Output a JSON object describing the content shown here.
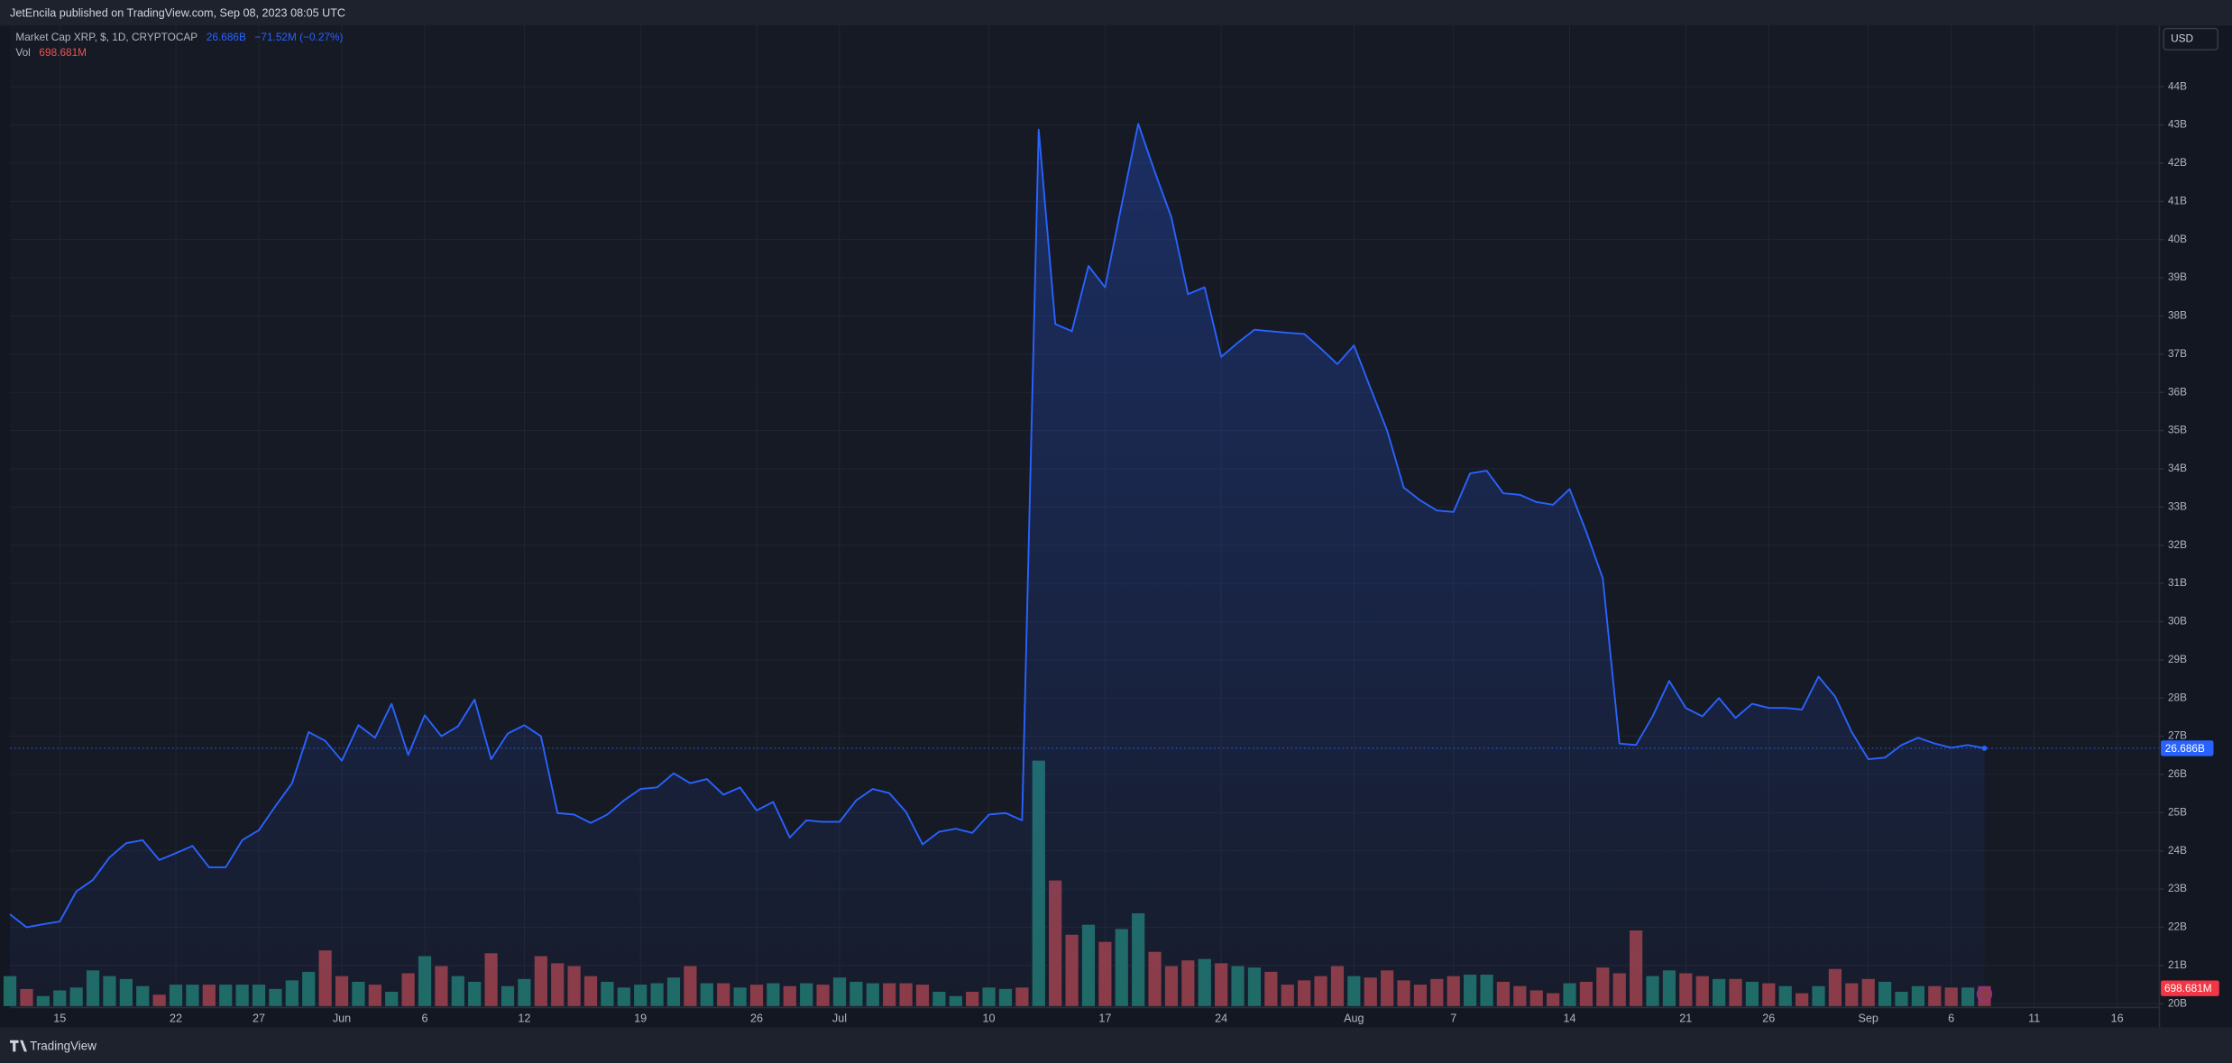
{
  "chart_data": {
    "type": "line",
    "header": "JetEncila published on TradingView.com, Sep 08, 2023 08:05 UTC",
    "legend": {
      "last": "26.686B",
      "change": "−71.52M (−0.27%)",
      "vol_last": "698.681M"
    },
    "currency": "USD",
    "footer": "TradingView",
    "x": [
      "May 12",
      "May 13",
      "May 14",
      "May 15",
      "May 16",
      "May 17",
      "May 18",
      "May 19",
      "May 20",
      "May 21",
      "May 22",
      "May 23",
      "May 24",
      "May 25",
      "May 26",
      "May 27",
      "May 28",
      "May 29",
      "May 30",
      "May 31",
      "Jun 1",
      "Jun 2",
      "Jun 3",
      "Jun 4",
      "Jun 5",
      "Jun 6",
      "Jun 7",
      "Jun 8",
      "Jun 9",
      "Jun 10",
      "Jun 11",
      "Jun 12",
      "Jun 13",
      "Jun 14",
      "Jun 15",
      "Jun 16",
      "Jun 17",
      "Jun 18",
      "Jun 19",
      "Jun 20",
      "Jun 21",
      "Jun 22",
      "Jun 23",
      "Jun 24",
      "Jun 25",
      "Jun 26",
      "Jun 27",
      "Jun 28",
      "Jun 29",
      "Jun 30",
      "Jul 1",
      "Jul 2",
      "Jul 3",
      "Jul 4",
      "Jul 5",
      "Jul 6",
      "Jul 7",
      "Jul 8",
      "Jul 9",
      "Jul 10",
      "Jul 11",
      "Jul 12",
      "Jul 13",
      "Jul 14",
      "Jul 15",
      "Jul 16",
      "Jul 17",
      "Jul 18",
      "Jul 19",
      "Jul 20",
      "Jul 21",
      "Jul 22",
      "Jul 23",
      "Jul 24",
      "Jul 25",
      "Jul 26",
      "Jul 27",
      "Jul 28",
      "Jul 29",
      "Jul 30",
      "Jul 31",
      "Aug 1",
      "Aug 2",
      "Aug 3",
      "Aug 4",
      "Aug 5",
      "Aug 6",
      "Aug 7",
      "Aug 8",
      "Aug 9",
      "Aug 10",
      "Aug 11",
      "Aug 12",
      "Aug 13",
      "Aug 14",
      "Aug 15",
      "Aug 16",
      "Aug 17",
      "Aug 18",
      "Aug 19",
      "Aug 20",
      "Aug 21",
      "Aug 22",
      "Aug 23",
      "Aug 24",
      "Aug 25",
      "Aug 26",
      "Aug 27",
      "Aug 28",
      "Aug 29",
      "Aug 30",
      "Aug 31",
      "Sep 1",
      "Sep 2",
      "Sep 3",
      "Sep 4",
      "Sep 5",
      "Sep 6",
      "Sep 7",
      "Sep 8"
    ],
    "series": [
      {
        "name": "Market Cap XRP, $, 1D, CRYPTOCAP",
        "color": "#2962ff",
        "values": [
          22.34,
          22.0,
          22.08,
          22.15,
          22.94,
          23.24,
          23.83,
          24.2,
          24.28,
          23.76,
          23.94,
          24.13,
          23.57,
          23.57,
          24.28,
          24.54,
          25.17,
          25.77,
          27.11,
          26.88,
          26.36,
          27.29,
          26.96,
          27.85,
          26.51,
          27.55,
          27.0,
          27.26,
          27.96,
          26.4,
          27.07,
          27.29,
          27.0,
          24.99,
          24.95,
          24.73,
          24.95,
          25.32,
          25.62,
          25.66,
          26.03,
          25.77,
          25.88,
          25.47,
          25.66,
          25.06,
          25.28,
          24.35,
          24.8,
          24.76,
          24.76,
          25.32,
          25.62,
          25.51,
          25.02,
          24.17,
          24.5,
          24.58,
          24.47,
          24.95,
          24.99,
          24.8,
          42.88,
          37.79,
          37.6,
          39.31,
          38.75,
          40.91,
          43.03,
          41.77,
          40.58,
          38.57,
          38.75,
          36.93,
          37.3,
          37.64,
          37.6,
          37.56,
          37.53,
          37.15,
          36.74,
          37.23,
          36.11,
          35.0,
          33.51,
          33.17,
          32.91,
          32.87,
          33.88,
          33.95,
          33.36,
          33.32,
          33.13,
          33.06,
          33.47,
          32.35,
          31.13,
          26.81,
          26.77,
          27.52,
          28.45,
          27.74,
          27.52,
          28.0,
          27.48,
          27.85,
          27.74,
          27.74,
          27.7,
          28.56,
          28.04,
          27.11,
          26.4,
          26.44,
          26.77,
          26.96,
          26.81,
          26.7,
          26.77,
          26.686
        ]
      },
      {
        "name": "Vol",
        "up_color": "#1f6b63",
        "down_color": "#8e3b42",
        "values": [
          1050,
          600,
          350,
          550,
          650,
          1250,
          1050,
          950,
          700,
          400,
          750,
          750,
          750,
          750,
          750,
          750,
          600,
          900,
          1200,
          1950,
          1050,
          850,
          750,
          500,
          1150,
          1750,
          1400,
          1050,
          850,
          1850,
          700,
          950,
          1750,
          1500,
          1400,
          1050,
          850,
          650,
          750,
          800,
          1000,
          1400,
          800,
          800,
          650,
          750,
          800,
          700,
          800,
          750,
          1000,
          850,
          800,
          800,
          800,
          750,
          500,
          350,
          500,
          650,
          600,
          650,
          8600,
          4400,
          2500,
          2850,
          2250,
          2700,
          3250,
          1900,
          1400,
          1600,
          1650,
          1500,
          1400,
          1350,
          1200,
          750,
          900,
          1050,
          1400,
          1050,
          1000,
          1250,
          900,
          750,
          950,
          1050,
          1100,
          1100,
          850,
          700,
          550,
          450,
          800,
          850,
          1350,
          1150,
          2650,
          1050,
          1250,
          1150,
          1050,
          950,
          950,
          850,
          800,
          700,
          450,
          700,
          1300,
          800,
          950,
          850,
          500,
          700,
          700,
          650,
          650,
          698.681
        ]
      }
    ],
    "xlim": [
      "May 12",
      "Sep 17"
    ],
    "xticks": [
      {
        "value": "May 15",
        "label": "15"
      },
      {
        "value": "May 22",
        "label": "22"
      },
      {
        "value": "May 27",
        "label": "27"
      },
      {
        "value": "Jun 1",
        "label": "Jun"
      },
      {
        "value": "Jun 6",
        "label": "6"
      },
      {
        "value": "Jun 12",
        "label": "12"
      },
      {
        "value": "Jun 19",
        "label": "19"
      },
      {
        "value": "Jun 26",
        "label": "26"
      },
      {
        "value": "Jul 1",
        "label": "Jul"
      },
      {
        "value": "Jul 10",
        "label": "10"
      },
      {
        "value": "Jul 17",
        "label": "17"
      },
      {
        "value": "Jul 24",
        "label": "24"
      },
      {
        "value": "Aug 1",
        "label": "Aug"
      },
      {
        "value": "Aug 7",
        "label": "7"
      },
      {
        "value": "Aug 14",
        "label": "14"
      },
      {
        "value": "Aug 21",
        "label": "21"
      },
      {
        "value": "Aug 26",
        "label": "26"
      },
      {
        "value": "Sep 1",
        "label": "Sep"
      },
      {
        "value": "Sep 6",
        "label": "6"
      },
      {
        "value": "Sep 11",
        "label": "11"
      },
      {
        "value": "Sep 16",
        "label": "16"
      }
    ],
    "ylim": [
      19.9,
      45.6
    ],
    "yticks": [
      {
        "value": 20,
        "label": "20B"
      },
      {
        "value": 21,
        "label": "21B"
      },
      {
        "value": 22,
        "label": "22B"
      },
      {
        "value": 23,
        "label": "23B"
      },
      {
        "value": 24,
        "label": "24B"
      },
      {
        "value": 25,
        "label": "25B"
      },
      {
        "value": 26,
        "label": "26B"
      },
      {
        "value": 27,
        "label": "27B"
      },
      {
        "value": 28,
        "label": "28B"
      },
      {
        "value": 29,
        "label": "29B"
      },
      {
        "value": 30,
        "label": "30B"
      },
      {
        "value": 31,
        "label": "31B"
      },
      {
        "value": 32,
        "label": "32B"
      },
      {
        "value": 33,
        "label": "33B"
      },
      {
        "value": 34,
        "label": "34B"
      },
      {
        "value": 35,
        "label": "35B"
      },
      {
        "value": 36,
        "label": "36B"
      },
      {
        "value": 37,
        "label": "37B"
      },
      {
        "value": 38,
        "label": "38B"
      },
      {
        "value": 39,
        "label": "39B"
      },
      {
        "value": 40,
        "label": "40B"
      },
      {
        "value": 41,
        "label": "41B"
      },
      {
        "value": 42,
        "label": "42B"
      },
      {
        "value": 43,
        "label": "43B"
      },
      {
        "value": 44,
        "label": "44B"
      }
    ],
    "grid": true
  }
}
